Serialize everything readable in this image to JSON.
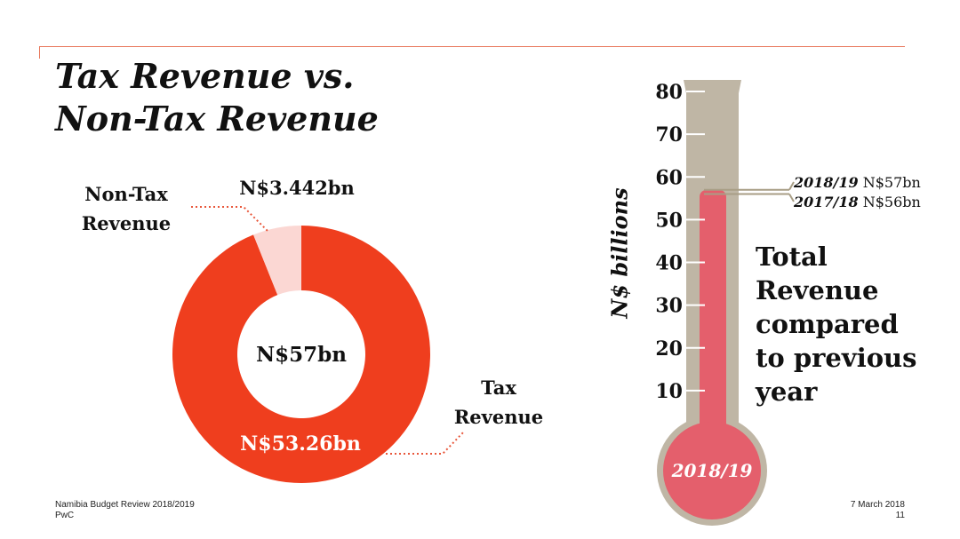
{
  "title": {
    "line1": "Tax Revenue vs.",
    "line2": "Non-Tax Revenue"
  },
  "footer": {
    "left_line1": "Namibia Budget Review 2018/2019",
    "left_line2": "PwC",
    "date": "7 March 2018",
    "page": "11"
  },
  "colors": {
    "tax": "#ef3e1e",
    "non_tax": "#fbd7d3",
    "thermo_tube": "#bfb6a5",
    "thermo_fill": "#e45f6c",
    "accent_line": "#e8765a"
  },
  "chart_data": [
    {
      "type": "pie",
      "style": "donut",
      "center_label": "N$57bn",
      "slices": [
        {
          "name": "Tax Revenue",
          "name_lines": [
            "Tax",
            "Revenue"
          ],
          "value": 53.26,
          "value_label": "N$53.26bn",
          "color": "#ef3e1e"
        },
        {
          "name": "Non-Tax Revenue",
          "name_lines": [
            "Non-Tax",
            "Revenue"
          ],
          "value": 3.442,
          "value_label": "N$3.442bn",
          "color": "#fbd7d3"
        }
      ]
    },
    {
      "type": "bar",
      "style": "thermometer",
      "ylabel": "N$ billions",
      "ylim": [
        0,
        80
      ],
      "yticks": [
        10,
        20,
        30,
        40,
        50,
        60,
        70,
        80
      ],
      "bulb_label": "2018/19",
      "series": [
        {
          "name": "2018/19",
          "value": 57,
          "value_label": "N$57bn"
        },
        {
          "name": "2017/18",
          "value": 56,
          "value_label": "N$56bn"
        }
      ],
      "annotation_lines": [
        "Total",
        "Revenue",
        "compared",
        "to previous",
        "year"
      ]
    }
  ]
}
